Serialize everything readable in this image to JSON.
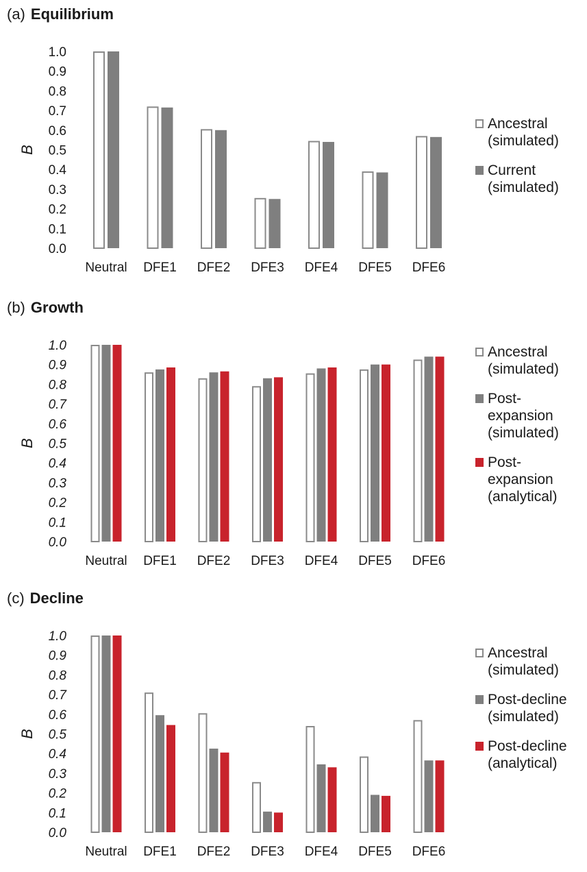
{
  "panels": [
    {
      "letter": "(a)",
      "title": "Equilibrium",
      "legend": [
        {
          "label": "Ancestral\n(simulated)",
          "style": "outline"
        },
        {
          "label": "Current\n(simulated)",
          "style": "gray"
        }
      ]
    },
    {
      "letter": "(b)",
      "title": "Growth",
      "legend": [
        {
          "label": "Ancestral\n(simulated)",
          "style": "outline"
        },
        {
          "label": "Post-\nexpansion\n(simulated)",
          "style": "gray"
        },
        {
          "label": "Post-\nexpansion\n(analytical)",
          "style": "red"
        }
      ]
    },
    {
      "letter": "(c)",
      "title": "Decline",
      "legend": [
        {
          "label": "Ancestral\n(simulated)",
          "style": "outline"
        },
        {
          "label": "Post-decline\n(simulated)",
          "style": "gray"
        },
        {
          "label": "Post-decline\n(analytical)",
          "style": "red"
        }
      ]
    }
  ],
  "colors": {
    "outline": "#8a8a8a",
    "gray": "#7f7f7f",
    "red": "#c8232c"
  },
  "chart_data": [
    {
      "type": "bar",
      "title": "Equilibrium",
      "ylabel": "B",
      "ylim": [
        0,
        1
      ],
      "yticks": [
        "0.0",
        "0.1",
        "0.2",
        "0.3",
        "0.4",
        "0.5",
        "0.6",
        "0.7",
        "0.8",
        "0.9",
        "1.0"
      ],
      "ytick_italic": false,
      "categories": [
        "Neutral",
        "DFE1",
        "DFE2",
        "DFE3",
        "DFE4",
        "DFE5",
        "DFE6"
      ],
      "series": [
        {
          "name": "Ancestral (simulated)",
          "style": "outline",
          "values": [
            1.0,
            0.72,
            0.605,
            0.255,
            0.545,
            0.39,
            0.57
          ]
        },
        {
          "name": "Current (simulated)",
          "style": "gray",
          "values": [
            1.0,
            0.715,
            0.6,
            0.25,
            0.54,
            0.385,
            0.565
          ]
        }
      ]
    },
    {
      "type": "bar",
      "title": "Growth",
      "ylabel": "B",
      "ylim": [
        0,
        1
      ],
      "yticks": [
        "0.0",
        "0.1",
        "0.2",
        "0.3",
        "0.4",
        "0.5",
        "0.6",
        "0.7",
        "0.8",
        "0.9",
        "1.0"
      ],
      "ytick_italic": true,
      "categories": [
        "Neutral",
        "DFE1",
        "DFE2",
        "DFE3",
        "DFE4",
        "DFE5",
        "DFE6"
      ],
      "series": [
        {
          "name": "Ancestral (simulated)",
          "style": "outline",
          "values": [
            1.0,
            0.86,
            0.83,
            0.79,
            0.855,
            0.875,
            0.925
          ]
        },
        {
          "name": "Post-expansion (simulated)",
          "style": "gray",
          "values": [
            1.0,
            0.875,
            0.86,
            0.83,
            0.88,
            0.9,
            0.94
          ]
        },
        {
          "name": "Post-expansion (analytical)",
          "style": "red",
          "values": [
            1.0,
            0.885,
            0.865,
            0.835,
            0.885,
            0.9,
            0.94
          ]
        }
      ]
    },
    {
      "type": "bar",
      "title": "Decline",
      "ylabel": "B",
      "ylim": [
        0,
        1
      ],
      "yticks": [
        "0.0",
        "0.1",
        "0.2",
        "0.3",
        "0.4",
        "0.5",
        "0.6",
        "0.7",
        "0.8",
        "0.9",
        "1.0"
      ],
      "ytick_italic": true,
      "categories": [
        "Neutral",
        "DFE1",
        "DFE2",
        "DFE3",
        "DFE4",
        "DFE5",
        "DFE6"
      ],
      "series": [
        {
          "name": "Ancestral (simulated)",
          "style": "outline",
          "values": [
            1.0,
            0.71,
            0.605,
            0.255,
            0.54,
            0.385,
            0.57
          ]
        },
        {
          "name": "Post-decline (simulated)",
          "style": "gray",
          "values": [
            1.0,
            0.595,
            0.425,
            0.105,
            0.345,
            0.19,
            0.365
          ]
        },
        {
          "name": "Post-decline (analytical)",
          "style": "red",
          "values": [
            1.0,
            0.545,
            0.405,
            0.1,
            0.33,
            0.185,
            0.365
          ]
        }
      ]
    }
  ]
}
